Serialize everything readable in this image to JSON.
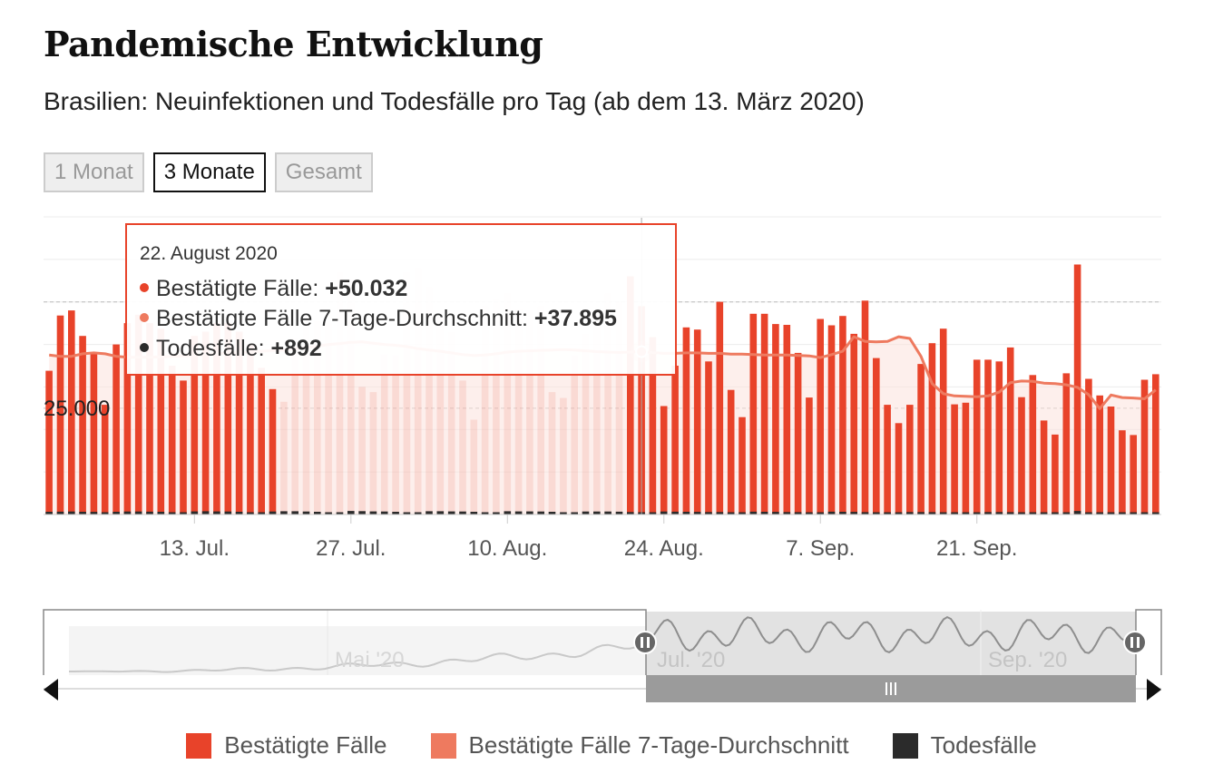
{
  "title": "Pandemische Entwicklung",
  "subtitle": "Brasilien: Neuinfektionen und Todesfälle pro Tag (ab dem 13. März 2020)",
  "range_buttons": [
    {
      "label": "1 Monat",
      "active": false
    },
    {
      "label": "3 Monate",
      "active": true
    },
    {
      "label": "Gesamt",
      "active": false
    }
  ],
  "tooltip": {
    "date": "22. August 2020",
    "rows": [
      {
        "label": "Bestätigte Fälle:",
        "value": "+50.032"
      },
      {
        "label": "Bestätigte Fälle 7-Tage-Durchschnitt:",
        "value": "+37.895"
      },
      {
        "label": "Todesfälle:",
        "value": "+892"
      }
    ]
  },
  "legend": [
    {
      "label": "Bestätigte Fälle",
      "color": "#e8432a"
    },
    {
      "label": "Bestätigte Fälle 7-Tage-Durchschnitt",
      "color": "#ee7a5f"
    },
    {
      "label": "Todesfälle",
      "color": "#2b2b2b"
    }
  ],
  "colors": {
    "cases": "#e8432a",
    "average": "#ee7a5f",
    "deaths": "#2b2b2b",
    "area": "#fbe2dc"
  },
  "chart_data": {
    "type": "bar",
    "start_date": "2020-06-30",
    "ylim": [
      0,
      70000
    ],
    "y_ticks": [
      25000
    ],
    "y_tick_labels": [
      "25.000"
    ],
    "x_ticks": [
      "2020-07-13",
      "2020-07-27",
      "2020-08-10",
      "2020-08-24",
      "2020-09-07",
      "2020-09-21"
    ],
    "x_tick_labels": [
      "13. Jul.",
      "27. Jul.",
      "10. Aug.",
      "24. Aug.",
      "7. Sep.",
      "21. Sep."
    ],
    "grid": true,
    "series": [
      {
        "name": "Bestätigte Fälle",
        "values": [
          33800,
          46800,
          48000,
          42000,
          37800,
          25800,
          40000,
          45000,
          47000,
          45000,
          43700,
          35000,
          31500,
          42000,
          43000,
          45000,
          45000,
          43000,
          40000,
          34500,
          29500,
          26500,
          41500,
          46500,
          45500,
          45000,
          57000,
          55500,
          30000,
          28800,
          37700,
          37400,
          57000,
          58000,
          53500,
          46500,
          42800,
          31500,
          22300,
          49000,
          50500,
          52000,
          48500,
          48000,
          49000,
          28800,
          27400,
          37500,
          42500,
          47000,
          52000,
          50000,
          56000,
          49000,
          41700,
          25500,
          35000,
          44000,
          43500,
          36000,
          50032,
          29300,
          22900,
          47200,
          47200,
          44800,
          44600,
          38000,
          27500,
          46000,
          44500,
          46700,
          42500,
          50300,
          36800,
          25800,
          21500,
          25800,
          35400,
          40300,
          43700,
          25900,
          26300,
          36400,
          36400,
          36000,
          39300,
          27600,
          32800,
          22100,
          18800,
          33200,
          58800,
          31900,
          28000,
          25400,
          19800,
          18700,
          31700,
          33000
        ]
      },
      {
        "name": "Bestätigte Fälle 7-Tage-Durchschnitt",
        "values": [
          37500,
          37200,
          37200,
          37800,
          38000,
          37800,
          37200,
          37000,
          37000,
          37000,
          37100,
          37200,
          37300,
          37400,
          37600,
          37800,
          38000,
          38100,
          38200,
          38400,
          38600,
          38700,
          39000,
          39200,
          39600,
          40000,
          40200,
          40500,
          40600,
          40300,
          40000,
          39800,
          39500,
          39000,
          38700,
          38400,
          38000,
          37600,
          37400,
          37500,
          37800,
          38200,
          38400,
          38500,
          38600,
          38700,
          38800,
          38700,
          38500,
          38300,
          38200,
          38100,
          38200,
          38300,
          38100,
          37900,
          37900,
          38000,
          38000,
          37900,
          37895,
          37700,
          37700,
          37600,
          37500,
          37500,
          37500,
          37400,
          37300,
          36900,
          37600,
          38400,
          41800,
          40700,
          40600,
          40700,
          41800,
          41400,
          37200,
          30800,
          28400,
          27900,
          27800,
          27700,
          27900,
          28800,
          31000,
          31400,
          31300,
          30900,
          30800,
          30500,
          29900,
          28200,
          24900,
          28100,
          27500,
          27400,
          27200,
          29300
        ]
      },
      {
        "name": "Todesfälle",
        "values": [
          1000,
          1050,
          1100,
          1000,
          950,
          600,
          1000,
          1100,
          1100,
          1050,
          1000,
          700,
          600,
          1150,
          1200,
          1150,
          1100,
          1000,
          700,
          600,
          1100,
          1200,
          1200,
          1100,
          1000,
          700,
          600,
          1300,
          1250,
          1150,
          1100,
          1000,
          700,
          600,
          1200,
          1200,
          1150,
          1100,
          1000,
          700,
          600,
          1200,
          1150,
          1150,
          1100,
          1000,
          700,
          600,
          1100,
          1100,
          1100,
          1050,
          900,
          600,
          550,
          1100,
          1050,
          1000,
          950,
          900,
          892,
          600,
          500,
          1050,
          1000,
          950,
          900,
          850,
          500,
          450,
          1050,
          1000,
          950,
          850,
          750,
          500,
          400,
          900,
          900,
          850,
          800,
          700,
          450,
          400,
          900,
          900,
          850,
          800,
          650,
          400,
          350,
          800,
          1300,
          800,
          750,
          600,
          350,
          300,
          750,
          750
        ]
      }
    ]
  },
  "navigator": {
    "labels": [
      "Mai '20",
      "Jul. '20",
      "Sep. '20"
    ],
    "handle_icon": "pause-handle-icon",
    "scrollbar_grip_icon": "grip-lines-icon"
  }
}
